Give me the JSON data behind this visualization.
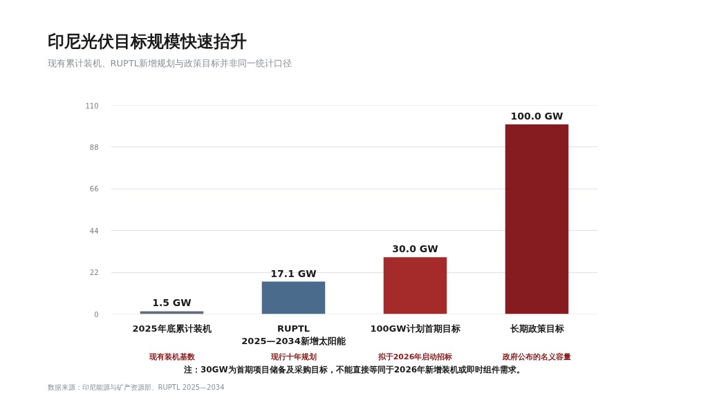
{
  "chart_data": {
    "type": "bar",
    "title": "印尼光伏目标规模快速抬升",
    "subtitle": "现有累计装机、RUPTL新增规划与政策目标并非同一统计口径",
    "categories": [
      "2025年底累计装机",
      "RUPTL\n2025—2034新增太阳能",
      "100GW计划首期目标",
      "长期政策目标"
    ],
    "values": [
      1.5,
      17.1,
      30.0,
      100.0
    ],
    "value_labels": [
      "1.5 GW",
      "17.1 GW",
      "30.0 GW",
      "100.0 GW"
    ],
    "colors": [
      "#646b7a",
      "#4a6b8c",
      "#a52b2b",
      "#861c1f"
    ],
    "ylim": [
      0,
      110
    ],
    "yticks": [
      0,
      22,
      44,
      66,
      88,
      110
    ],
    "grid": "y",
    "annotations": [
      "现有装机基数",
      "现行十年规划",
      "拟于2026年启动招标",
      "政府公布的名义容量",
      "注：30GW为首期项目储备及采购目标，不能直接等同于2026年新增装机或即时组件需求。",
      "数据来源：印尼能源与矿产资源部、RUPTL 2025—2034"
    ]
  }
}
